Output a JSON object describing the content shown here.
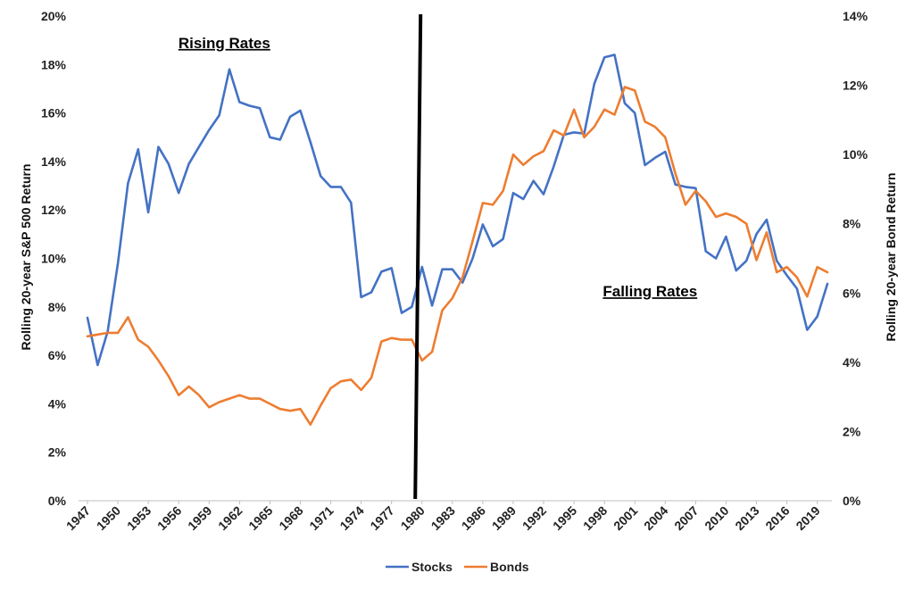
{
  "chart_data": {
    "type": "line",
    "ylabel_left": "Rolling 20-year S&P 500 Return",
    "ylabel_right": "Rolling 20-year Bond Return",
    "ylim_left": [
      0,
      20
    ],
    "ylim_right": [
      0,
      14
    ],
    "yticks_left": [
      "0%",
      "2%",
      "4%",
      "6%",
      "8%",
      "10%",
      "12%",
      "14%",
      "16%",
      "18%",
      "20%"
    ],
    "yticks_right": [
      "0%",
      "2%",
      "4%",
      "6%",
      "8%",
      "10%",
      "12%",
      "14%"
    ],
    "xlim": [
      1947,
      2020
    ],
    "xticks": [
      "1947",
      "1950",
      "1953",
      "1956",
      "1959",
      "1962",
      "1965",
      "1968",
      "1971",
      "1974",
      "1977",
      "1980",
      "1983",
      "1986",
      "1989",
      "1992",
      "1995",
      "1998",
      "2001",
      "2004",
      "2007",
      "2010",
      "2013",
      "2016",
      "2019"
    ],
    "grid": false,
    "legend_position": "bottom",
    "divider_year": 1979.6,
    "annotations": [
      {
        "text": "Rising Rates",
        "x": 1960.5,
        "y": 18.9
      },
      {
        "text": "Falling Rates",
        "x": 2002.5,
        "y": 8.65
      }
    ],
    "series": [
      {
        "name": "Stocks",
        "axis": "left",
        "color": "#4472c4",
        "x": [
          1947,
          1948,
          1949,
          1950,
          1951,
          1952,
          1953,
          1954,
          1955,
          1956,
          1957,
          1958,
          1959,
          1960,
          1961,
          1962,
          1963,
          1964,
          1965,
          1966,
          1967,
          1968,
          1969,
          1970,
          1971,
          1972,
          1973,
          1974,
          1975,
          1976,
          1977,
          1978,
          1979,
          1980,
          1981,
          1982,
          1983,
          1984,
          1985,
          1986,
          1987,
          1988,
          1989,
          1990,
          1991,
          1992,
          1993,
          1994,
          1995,
          1996,
          1997,
          1998,
          1999,
          2000,
          2001,
          2002,
          2003,
          2004,
          2005,
          2006,
          2007,
          2008,
          2009,
          2010,
          2011,
          2012,
          2013,
          2014,
          2015,
          2016,
          2017,
          2018,
          2019,
          2020
        ],
        "values": [
          7.55,
          5.6,
          7.0,
          9.8,
          13.1,
          14.5,
          11.9,
          14.6,
          13.9,
          12.7,
          13.9,
          14.6,
          15.3,
          15.9,
          17.8,
          16.45,
          16.3,
          16.2,
          15.0,
          14.9,
          15.85,
          16.1,
          14.8,
          13.4,
          12.95,
          12.95,
          12.3,
          8.4,
          8.6,
          9.45,
          9.6,
          7.75,
          8.0,
          9.65,
          8.05,
          9.55,
          9.55,
          9.0,
          10.0,
          11.4,
          10.5,
          10.8,
          12.7,
          12.45,
          13.2,
          12.65,
          13.8,
          15.1,
          15.2,
          15.15,
          17.2,
          18.3,
          18.4,
          16.4,
          16.0,
          13.85,
          14.15,
          14.4,
          13.05,
          12.95,
          12.9,
          10.3,
          10.0,
          10.9,
          9.5,
          9.9,
          11.0,
          11.6,
          9.9,
          9.3,
          8.75,
          7.05,
          7.6,
          8.95
        ]
      },
      {
        "name": "Bonds",
        "axis": "right",
        "color": "#ed7d31",
        "x": [
          1947,
          1948,
          1949,
          1950,
          1951,
          1952,
          1953,
          1954,
          1955,
          1956,
          1957,
          1958,
          1959,
          1960,
          1961,
          1962,
          1963,
          1964,
          1965,
          1966,
          1967,
          1968,
          1969,
          1970,
          1971,
          1972,
          1973,
          1974,
          1975,
          1976,
          1977,
          1978,
          1979,
          1980,
          1981,
          1982,
          1983,
          1984,
          1985,
          1986,
          1987,
          1988,
          1989,
          1990,
          1991,
          1992,
          1993,
          1994,
          1995,
          1996,
          1997,
          1998,
          1999,
          2000,
          2001,
          2002,
          2003,
          2004,
          2005,
          2006,
          2007,
          2008,
          2009,
          2010,
          2011,
          2012,
          2013,
          2014,
          2015,
          2016,
          2017,
          2018,
          2019,
          2020
        ],
        "values": [
          4.75,
          4.8,
          4.85,
          4.85,
          5.3,
          4.65,
          4.45,
          4.05,
          3.6,
          3.05,
          3.3,
          3.05,
          2.7,
          2.85,
          2.95,
          3.05,
          2.95,
          2.95,
          2.8,
          2.65,
          2.6,
          2.65,
          2.2,
          2.75,
          3.25,
          3.45,
          3.5,
          3.2,
          3.55,
          4.6,
          4.7,
          4.65,
          4.65,
          4.05,
          4.3,
          5.5,
          5.85,
          6.45,
          7.5,
          8.6,
          8.55,
          8.95,
          10.0,
          9.7,
          9.95,
          10.1,
          10.7,
          10.55,
          11.3,
          10.5,
          10.8,
          11.3,
          11.15,
          11.95,
          11.85,
          10.95,
          10.8,
          10.5,
          9.45,
          8.55,
          8.95,
          8.65,
          8.2,
          8.3,
          8.2,
          8.0,
          6.95,
          7.75,
          6.6,
          6.75,
          6.45,
          5.9,
          6.75,
          6.6
        ]
      }
    ]
  }
}
